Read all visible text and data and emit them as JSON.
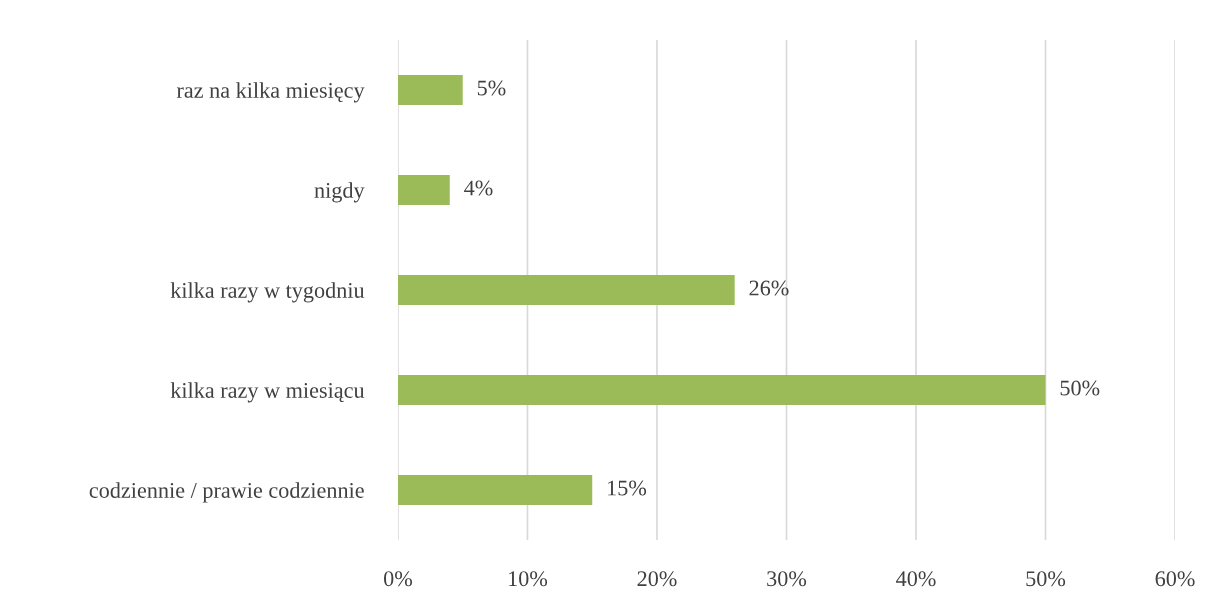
{
  "chart_data": {
    "type": "bar",
    "orientation": "horizontal",
    "categories": [
      "raz na kilka miesięcy",
      "nigdy",
      "kilka razy w tygodniu",
      "kilka razy w miesiącu",
      "codziennie / prawie codziennie"
    ],
    "values": [
      5,
      4,
      26,
      50,
      15
    ],
    "value_labels": [
      "5%",
      "4%",
      "26%",
      "50%",
      "15%"
    ],
    "color": "#9bbb59",
    "xlim": [
      0,
      60
    ],
    "xticks": [
      {
        "value": 0,
        "label": "0%"
      },
      {
        "value": 10,
        "label": "10%"
      },
      {
        "value": 20,
        "label": "20%"
      },
      {
        "value": 30,
        "label": "30%"
      },
      {
        "value": 40,
        "label": "40%"
      },
      {
        "value": 50,
        "label": "50%"
      },
      {
        "value": 60,
        "label": "60%"
      }
    ],
    "grid": "x"
  }
}
